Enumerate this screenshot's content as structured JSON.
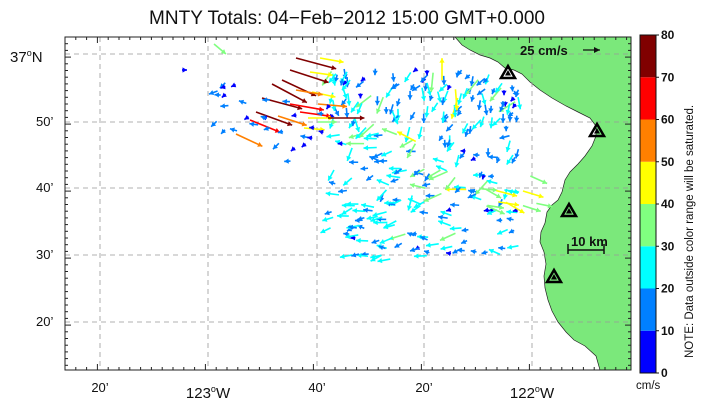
{
  "title": "MNTY Totals: 04−Feb−2012 15:00 GMT+0.000",
  "map": {
    "top_lat_label": "37",
    "top_lat_suffix": "N",
    "lat_minute_labels": [
      "50’",
      "40’",
      "30’",
      "20’"
    ],
    "lon_labels": [
      {
        "deg": "",
        "min": "20’",
        "hemi": ""
      },
      {
        "deg": "123",
        "min": "",
        "hemi": "W"
      },
      {
        "deg": "",
        "min": "40’",
        "hemi": ""
      },
      {
        "deg": "",
        "min": "20’",
        "hemi": ""
      },
      {
        "deg": "122",
        "min": "",
        "hemi": "W"
      }
    ],
    "degree_symbol": "o",
    "land_color": "#7be87b",
    "ocean_color": "#ffffff",
    "reference_vector": "25 cm/s",
    "scale_bar": "10 km",
    "site_count": 4
  },
  "colorbar": {
    "ticks": [
      "0",
      "10",
      "20",
      "30",
      "40",
      "50",
      "60",
      "70",
      "80"
    ],
    "colors": [
      "#0000ff",
      "#0080ff",
      "#00ffff",
      "#80ff80",
      "#ffff00",
      "#ff8000",
      "#ff0000",
      "#800000"
    ],
    "units": "cm/s",
    "note": "NOTE: Data outside color range will be saturated."
  }
}
